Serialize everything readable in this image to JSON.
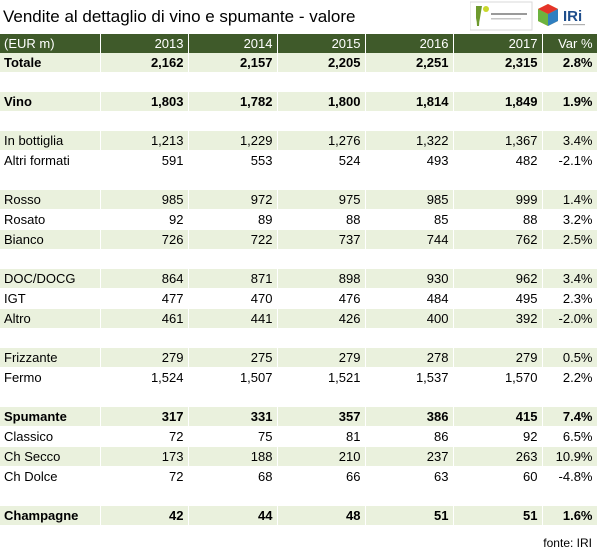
{
  "title": "Vendite al dettaglio di vino e spumante - valore",
  "brand": {
    "secondary": "IRi"
  },
  "colors": {
    "header_bg": "#3f5a2a",
    "row_shade": "#eaf1dd"
  },
  "header": {
    "label": "(EUR m)",
    "years": [
      "2013",
      "2014",
      "2015",
      "2016",
      "2017"
    ],
    "var": "Var %"
  },
  "rows": [
    {
      "label": "Totale",
      "values": [
        "2,162",
        "2,157",
        "2,205",
        "2,251",
        "2,315"
      ],
      "var": "2.8%",
      "bold": true
    },
    null,
    {
      "label": "Vino",
      "values": [
        "1,803",
        "1,782",
        "1,800",
        "1,814",
        "1,849"
      ],
      "var": "1.9%",
      "bold": true
    },
    null,
    {
      "label": "In bottiglia",
      "values": [
        "1,213",
        "1,229",
        "1,276",
        "1,322",
        "1,367"
      ],
      "var": "3.4%"
    },
    {
      "label": "Altri formati",
      "values": [
        "591",
        "553",
        "524",
        "493",
        "482"
      ],
      "var": "-2.1%"
    },
    null,
    {
      "label": "Rosso",
      "values": [
        "985",
        "972",
        "975",
        "985",
        "999"
      ],
      "var": "1.4%"
    },
    {
      "label": "Rosato",
      "values": [
        "92",
        "89",
        "88",
        "85",
        "88"
      ],
      "var": "3.2%"
    },
    {
      "label": "Bianco",
      "values": [
        "726",
        "722",
        "737",
        "744",
        "762"
      ],
      "var": "2.5%"
    },
    null,
    {
      "label": "DOC/DOCG",
      "values": [
        "864",
        "871",
        "898",
        "930",
        "962"
      ],
      "var": "3.4%"
    },
    {
      "label": "IGT",
      "values": [
        "477",
        "470",
        "476",
        "484",
        "495"
      ],
      "var": "2.3%"
    },
    {
      "label": "Altro",
      "values": [
        "461",
        "441",
        "426",
        "400",
        "392"
      ],
      "var": "-2.0%"
    },
    null,
    {
      "label": "Frizzante",
      "values": [
        "279",
        "275",
        "279",
        "278",
        "279"
      ],
      "var": "0.5%"
    },
    {
      "label": "Fermo",
      "values": [
        "1,524",
        "1,507",
        "1,521",
        "1,537",
        "1,570"
      ],
      "var": "2.2%"
    },
    null,
    {
      "label": "Spumante",
      "values": [
        "317",
        "331",
        "357",
        "386",
        "415"
      ],
      "var": "7.4%",
      "bold": true
    },
    {
      "label": "Classico",
      "values": [
        "72",
        "75",
        "81",
        "86",
        "92"
      ],
      "var": "6.5%"
    },
    {
      "label": "Ch Secco",
      "values": [
        "173",
        "188",
        "210",
        "237",
        "263"
      ],
      "var": "10.9%"
    },
    {
      "label": "Ch Dolce",
      "values": [
        "72",
        "68",
        "66",
        "63",
        "60"
      ],
      "var": "-4.8%"
    },
    null,
    {
      "label": "Champagne",
      "values": [
        "42",
        "44",
        "48",
        "51",
        "51"
      ],
      "var": "1.6%",
      "bold": true
    }
  ],
  "source": "fonte: IRI"
}
